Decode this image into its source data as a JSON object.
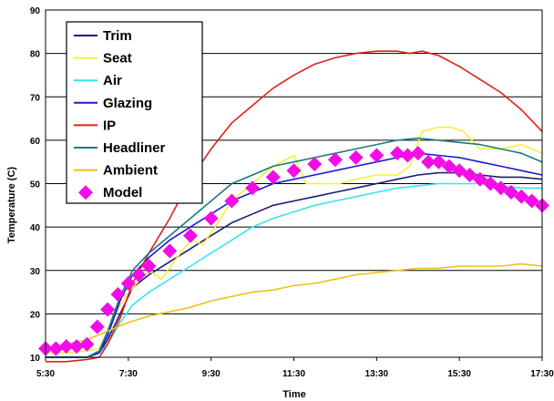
{
  "chart_data": {
    "type": "line",
    "xlabel": "Time",
    "ylabel": "Temperature (C)",
    "xticks": [
      "5:30",
      "7:30",
      "9:30",
      "11:30",
      "13:30",
      "15:30",
      "17:30"
    ],
    "xlim": [
      5.5,
      17.5
    ],
    "ylim": [
      10,
      90
    ],
    "yticks": [
      10,
      20,
      30,
      40,
      50,
      60,
      70,
      80,
      90
    ],
    "grid": "horizontal",
    "legend_position": "top-left",
    "series": [
      {
        "name": "Trim",
        "color": "#1b1b7a",
        "x": [
          5.5,
          6.0,
          6.5,
          6.8,
          7.0,
          7.3,
          7.6,
          8.0,
          8.5,
          9.0,
          9.5,
          10.0,
          10.5,
          11.0,
          11.5,
          12.0,
          12.5,
          13.0,
          13.5,
          14.0,
          14.5,
          15.0,
          15.5,
          16.0,
          16.5,
          17.0,
          17.5
        ],
        "y": [
          10,
          10,
          10,
          11,
          14,
          20,
          26,
          29,
          32,
          35,
          38,
          41,
          43,
          45,
          46,
          47,
          48,
          49,
          50,
          51,
          52,
          52.5,
          52.5,
          52,
          51.5,
          51.5,
          51
        ]
      },
      {
        "name": "Seat",
        "color": "#f4ef3a",
        "x": [
          5.5,
          6.0,
          6.5,
          6.8,
          7.0,
          7.3,
          7.6,
          8.0,
          8.3,
          8.6,
          9.0,
          9.3,
          9.6,
          10.0,
          10.5,
          11.0,
          11.5,
          11.8,
          12.2,
          12.6,
          13.0,
          13.5,
          14.0,
          14.3,
          14.6,
          15.0,
          15.3,
          15.6,
          16.0,
          16.5,
          17.0,
          17.5
        ],
        "y": [
          11,
          11,
          11.5,
          12,
          16,
          22,
          26,
          30,
          28,
          32,
          37,
          36,
          40,
          46,
          50,
          54,
          56.5,
          50,
          50,
          50,
          51,
          52,
          52,
          54,
          62,
          63,
          63,
          62,
          58,
          58,
          59,
          57
        ]
      },
      {
        "name": "Air",
        "color": "#39e4ef",
        "x": [
          5.5,
          6.0,
          6.5,
          6.8,
          7.0,
          7.3,
          7.6,
          8.0,
          8.5,
          9.0,
          9.5,
          10.0,
          10.5,
          11.0,
          11.5,
          12.0,
          12.5,
          13.0,
          13.5,
          14.0,
          14.5,
          15.0,
          15.5,
          16.0,
          16.5,
          17.0,
          17.5
        ],
        "y": [
          10,
          10,
          10,
          11,
          13,
          18,
          22,
          25,
          28,
          31,
          34,
          37,
          40,
          42,
          43.5,
          45,
          46,
          47,
          48,
          49,
          49.5,
          50,
          50,
          50,
          49.5,
          49,
          49
        ]
      },
      {
        "name": "Glazing",
        "color": "#1a1ad6",
        "x": [
          5.5,
          6.0,
          6.5,
          6.8,
          7.0,
          7.3,
          7.6,
          8.0,
          8.5,
          9.0,
          9.5,
          10.0,
          10.5,
          11.0,
          11.5,
          12.0,
          12.5,
          13.0,
          13.5,
          14.0,
          14.5,
          15.0,
          15.5,
          16.0,
          16.5,
          17.0,
          17.5
        ],
        "y": [
          10,
          10,
          10,
          11,
          15,
          23,
          29,
          33,
          37,
          40,
          43,
          46,
          48,
          50,
          51,
          52,
          53,
          54,
          55,
          56,
          57,
          56.5,
          56,
          55,
          54,
          53,
          52
        ]
      },
      {
        "name": "IP",
        "color": "#e0201b",
        "x": [
          5.5,
          6.0,
          6.5,
          6.8,
          7.0,
          7.3,
          7.6,
          8.0,
          8.5,
          9.0,
          9.5,
          10.0,
          10.5,
          11.0,
          11.5,
          12.0,
          12.5,
          13.0,
          13.5,
          14.0,
          14.3,
          14.6,
          15.0,
          15.5,
          16.0,
          16.5,
          17.0,
          17.5
        ],
        "y": [
          9,
          9,
          9.5,
          10,
          13,
          19,
          27,
          34,
          42,
          51,
          58,
          64,
          68,
          72,
          75,
          77.5,
          79,
          80,
          80.5,
          80.5,
          80,
          80.5,
          79.5,
          77,
          74,
          71,
          67,
          62
        ]
      },
      {
        "name": "Headliner",
        "color": "#1b7b7b",
        "x": [
          5.5,
          6.0,
          6.5,
          6.8,
          7.0,
          7.3,
          7.6,
          8.0,
          8.5,
          9.0,
          9.5,
          10.0,
          10.5,
          11.0,
          11.5,
          12.0,
          12.5,
          13.0,
          13.5,
          14.0,
          14.5,
          15.0,
          15.5,
          16.0,
          16.5,
          17.0,
          17.5
        ],
        "y": [
          10,
          10,
          10,
          11.5,
          16,
          24,
          30,
          34,
          38,
          42,
          46,
          50,
          52,
          54,
          55,
          56,
          57,
          58,
          59,
          60,
          60.5,
          60,
          59.5,
          59,
          58,
          57,
          55
        ]
      },
      {
        "name": "Ambient",
        "color": "#f2bf1d",
        "x": [
          5.5,
          6.0,
          6.5,
          7.0,
          7.5,
          8.0,
          8.5,
          9.0,
          9.5,
          10.0,
          10.5,
          11.0,
          11.5,
          12.0,
          12.5,
          13.0,
          13.5,
          14.0,
          14.5,
          15.0,
          15.5,
          16.0,
          16.5,
          17.0,
          17.5
        ],
        "y": [
          12,
          13,
          14,
          16,
          18,
          19.5,
          20.5,
          21.5,
          23,
          24,
          25,
          25.5,
          26.5,
          27,
          28,
          29,
          29.5,
          30,
          30.5,
          30.5,
          31,
          31,
          31,
          31.5,
          31
        ]
      },
      {
        "name": "Model",
        "color": "#f20de6",
        "x": [
          5.5,
          5.75,
          6.0,
          6.25,
          6.5,
          6.75,
          7.0,
          7.25,
          7.5,
          7.75,
          8.0,
          8.5,
          9.0,
          9.5,
          10.0,
          10.5,
          11.0,
          11.5,
          12.0,
          12.5,
          13.0,
          13.5,
          14.0,
          14.25,
          14.5,
          14.75,
          15.0,
          15.25,
          15.5,
          15.75,
          16.0,
          16.25,
          16.5,
          16.75,
          17.0,
          17.25,
          17.5
        ],
        "y": [
          12,
          12,
          12.5,
          12.5,
          13,
          17,
          21,
          24.5,
          27,
          29,
          31,
          34.5,
          38,
          42,
          46,
          49,
          51.5,
          53,
          54.5,
          55.5,
          56,
          56.5,
          57,
          56.5,
          57,
          55,
          55,
          54,
          53,
          52,
          51,
          50,
          49,
          48,
          47,
          46,
          45
        ]
      }
    ]
  }
}
